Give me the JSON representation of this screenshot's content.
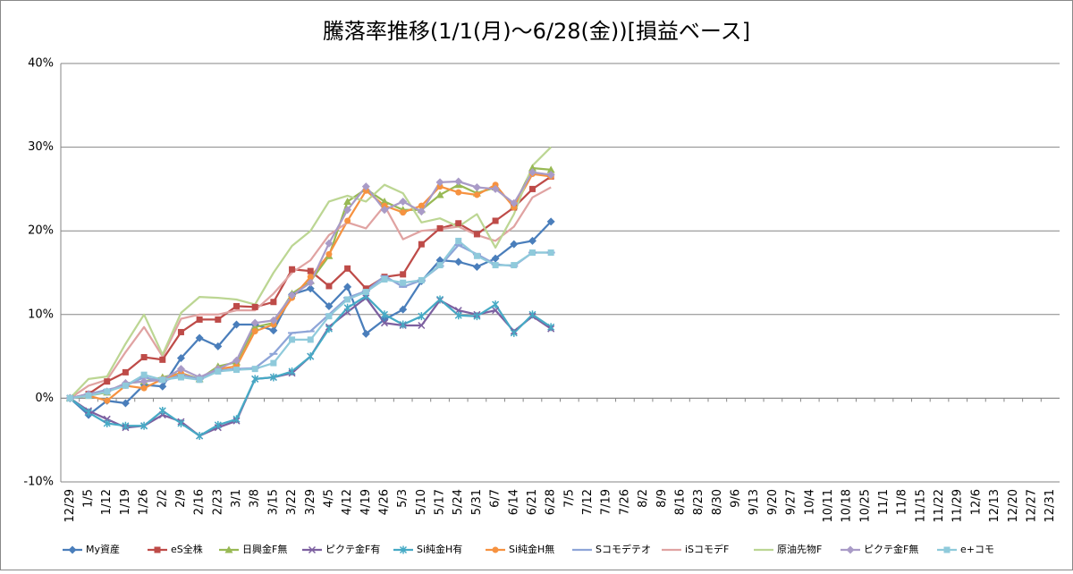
{
  "chart_data": {
    "type": "line",
    "title": "騰落率推移(1/1(月)～6/28(金))[損益ベース]",
    "categories": [
      "12/29",
      "1/5",
      "1/12",
      "1/19",
      "1/26",
      "2/2",
      "2/9",
      "2/16",
      "2/23",
      "3/1",
      "3/8",
      "3/15",
      "3/22",
      "3/29",
      "4/5",
      "4/12",
      "4/19",
      "4/26",
      "5/3",
      "5/10",
      "5/17",
      "5/24",
      "5/31",
      "6/7",
      "6/14",
      "6/21",
      "6/28",
      "7/5",
      "7/12",
      "7/19",
      "7/26",
      "8/2",
      "8/9",
      "8/16",
      "8/23",
      "8/30",
      "9/6",
      "9/13",
      "9/20",
      "9/27",
      "10/4",
      "10/11",
      "10/18",
      "10/25",
      "11/1",
      "11/8",
      "11/15",
      "11/22",
      "11/29",
      "12/6",
      "12/13",
      "12/20",
      "12/27",
      "12/31"
    ],
    "ylim": [
      -10,
      40
    ],
    "yticks": [
      {
        "value": -10,
        "label": "-10%"
      },
      {
        "value": 0,
        "label": "0%"
      },
      {
        "value": 10,
        "label": "10%"
      },
      {
        "value": 20,
        "label": "20%"
      },
      {
        "value": 30,
        "label": "30%"
      },
      {
        "value": 40,
        "label": "40%"
      }
    ],
    "grid": true,
    "legend": "bottom",
    "series": [
      {
        "name": "My資産",
        "color": "#4a7ebb",
        "marker": "diamond",
        "values": [
          0,
          -2,
          -0.3,
          -0.6,
          1.6,
          1.4,
          4.8,
          7.2,
          6.2,
          8.8,
          8.8,
          8.1,
          12.4,
          13.1,
          11,
          13.3,
          7.7,
          9.4,
          10.6,
          14,
          16.5,
          16.3,
          15.7,
          16.7,
          18.4,
          18.8,
          21.1,
          null,
          null,
          null,
          null,
          null,
          null,
          null,
          null,
          null,
          null,
          null,
          null,
          null,
          null,
          null,
          null,
          null,
          null,
          null,
          null,
          null,
          null,
          null,
          null,
          null,
          null,
          null
        ]
      },
      {
        "name": "eS全株",
        "color": "#be4b48",
        "marker": "square",
        "values": [
          0,
          0.5,
          2,
          3.1,
          4.9,
          4.6,
          7.9,
          9.4,
          9.4,
          11,
          10.9,
          11.5,
          15.4,
          15.2,
          13.4,
          15.5,
          13.1,
          14.5,
          14.8,
          18.4,
          20.3,
          20.9,
          19.6,
          21.2,
          22.8,
          25,
          26.5,
          null,
          null,
          null,
          null,
          null,
          null,
          null,
          null,
          null,
          null,
          null,
          null,
          null,
          null,
          null,
          null,
          null,
          null,
          null,
          null,
          null,
          null,
          null,
          null,
          null,
          null,
          null
        ]
      },
      {
        "name": "日興金F無",
        "color": "#98b954",
        "marker": "triangle",
        "values": [
          0,
          0.3,
          0.7,
          1.8,
          2,
          2.5,
          3,
          2.3,
          3.8,
          4.3,
          8.5,
          9,
          12.5,
          14,
          17,
          23.5,
          25,
          23.5,
          22.5,
          22.5,
          24.3,
          25.5,
          24.5,
          25.2,
          23,
          27.5,
          27.3,
          null,
          null,
          null,
          null,
          null,
          null,
          null,
          null,
          null,
          null,
          null,
          null,
          null,
          null,
          null,
          null,
          null,
          null,
          null,
          null,
          null,
          null,
          null,
          null,
          null,
          null,
          null
        ]
      },
      {
        "name": "ピクテ金F有",
        "color": "#7d60a0",
        "marker": "x",
        "values": [
          0,
          -1.5,
          -2.5,
          -3.5,
          -3.3,
          -2,
          -2.8,
          -4.5,
          -3.5,
          -2.7,
          2.3,
          2.5,
          3,
          5,
          8.5,
          10.3,
          12,
          9,
          8.7,
          8.7,
          11.7,
          10.5,
          10,
          10.5,
          8,
          9.8,
          8.3,
          null,
          null,
          null,
          null,
          null,
          null,
          null,
          null,
          null,
          null,
          null,
          null,
          null,
          null,
          null,
          null,
          null,
          null,
          null,
          null,
          null,
          null,
          null,
          null,
          null,
          null,
          null
        ]
      },
      {
        "name": "Si純金H有",
        "color": "#46aac5",
        "marker": "star",
        "values": [
          0,
          -1.7,
          -3,
          -3.3,
          -3.3,
          -1.5,
          -3,
          -4.5,
          -3.2,
          -2.5,
          2.3,
          2.5,
          3.2,
          5,
          8.3,
          10.8,
          12.2,
          10,
          8.8,
          9.8,
          11.8,
          9.9,
          9.8,
          11.2,
          7.8,
          10,
          8.5,
          null,
          null,
          null,
          null,
          null,
          null,
          null,
          null,
          null,
          null,
          null,
          null,
          null,
          null,
          null,
          null,
          null,
          null,
          null,
          null,
          null,
          null,
          null,
          null,
          null,
          null,
          null
        ]
      },
      {
        "name": "Si純金H無",
        "color": "#f69240",
        "marker": "circle",
        "values": [
          0,
          0.3,
          -0.3,
          1.5,
          1.2,
          2.3,
          3,
          2.2,
          3.5,
          3.8,
          8,
          8.8,
          12,
          14.5,
          17.2,
          21.2,
          24.8,
          23,
          22.2,
          23,
          25.3,
          24.6,
          24.3,
          25.5,
          22.8,
          26.8,
          26.5,
          null,
          null,
          null,
          null,
          null,
          null,
          null,
          null,
          null,
          null,
          null,
          null,
          null,
          null,
          null,
          null,
          null,
          null,
          null,
          null,
          null,
          null,
          null,
          null,
          null,
          null,
          null
        ]
      },
      {
        "name": "Sコモデテオ",
        "color": "#8ea5d8",
        "marker": "plus",
        "values": [
          0,
          0.5,
          1,
          1.5,
          2.5,
          2,
          2.8,
          2.3,
          3.3,
          3.5,
          3.6,
          5.3,
          7.8,
          8,
          10,
          12,
          12.8,
          14.6,
          13.3,
          14.1,
          15.8,
          18.3,
          17.2,
          16,
          15.8,
          17.4,
          17.4,
          null,
          null,
          null,
          null,
          null,
          null,
          null,
          null,
          null,
          null,
          null,
          null,
          null,
          null,
          null,
          null,
          null,
          null,
          null,
          null,
          null,
          null,
          null,
          null,
          null,
          null,
          null
        ]
      },
      {
        "name": "iSコモデF",
        "color": "#e0a3a2",
        "marker": "none",
        "values": [
          0,
          1.5,
          2.2,
          5.5,
          8.5,
          5,
          9.5,
          10,
          10,
          10.5,
          10.5,
          12.5,
          15,
          16.5,
          19.5,
          21,
          20.3,
          23,
          19,
          20,
          20.2,
          20.5,
          19.5,
          18.8,
          20.5,
          24,
          25.2,
          null,
          null,
          null,
          null,
          null,
          null,
          null,
          null,
          null,
          null,
          null,
          null,
          null,
          null,
          null,
          null,
          null,
          null,
          null,
          null,
          null,
          null,
          null,
          null,
          null,
          null,
          null
        ]
      },
      {
        "name": "原油先物F",
        "color": "#bcd693",
        "marker": "none",
        "values": [
          0,
          2.3,
          2.6,
          6.5,
          10,
          5.2,
          10.2,
          12.1,
          12,
          11.8,
          11.2,
          15,
          18.2,
          20,
          23.5,
          24.2,
          23.5,
          25.5,
          24.5,
          21,
          21.5,
          20.5,
          22,
          18,
          22,
          27.8,
          30,
          null,
          null,
          null,
          null,
          null,
          null,
          null,
          null,
          null,
          null,
          null,
          null,
          null,
          null,
          null,
          null,
          null,
          null,
          null,
          null,
          null,
          null,
          null,
          null,
          null,
          null,
          null
        ]
      },
      {
        "name": "ピクテ金F無",
        "color": "#a99bc7",
        "marker": "diamond",
        "values": [
          0,
          0.5,
          0.8,
          1.8,
          2,
          2.2,
          3.5,
          2.5,
          3.5,
          4.5,
          9,
          9.3,
          12.3,
          13.8,
          18.5,
          22.5,
          25.3,
          22.5,
          23.5,
          22.3,
          25.8,
          25.9,
          25.2,
          25,
          23.3,
          27,
          26.7,
          null,
          null,
          null,
          null,
          null,
          null,
          null,
          null,
          null,
          null,
          null,
          null,
          null,
          null,
          null,
          null,
          null,
          null,
          null,
          null,
          null,
          null,
          null,
          null,
          null,
          null,
          null
        ]
      },
      {
        "name": "e+コモ",
        "color": "#8fcadb",
        "marker": "square",
        "values": [
          0,
          0.3,
          0.8,
          1.5,
          2.8,
          2.2,
          2.5,
          2.2,
          3.2,
          3.4,
          3.5,
          4.2,
          7,
          7,
          9.8,
          11.8,
          12.7,
          14.2,
          13.8,
          14.1,
          15.9,
          18.8,
          17,
          15.9,
          15.9,
          17.4,
          17.4,
          null,
          null,
          null,
          null,
          null,
          null,
          null,
          null,
          null,
          null,
          null,
          null,
          null,
          null,
          null,
          null,
          null,
          null,
          null,
          null,
          null,
          null,
          null,
          null,
          null,
          null,
          null
        ]
      }
    ]
  }
}
